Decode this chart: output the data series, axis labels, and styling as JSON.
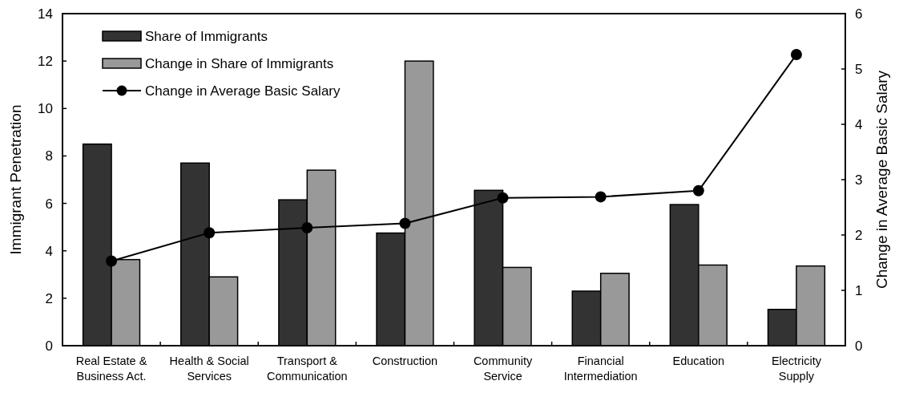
{
  "chart_data": {
    "type": "bar",
    "categories": [
      "Real Estate &\nBusiness Act.",
      "Health & Social\nServices",
      "Transport &\nCommunication",
      "Construction",
      "Community\nService",
      "Financial\nIntermediation",
      "Education",
      "Electricity\nSupply"
    ],
    "series": [
      {
        "name": "Share of Immigrants",
        "color": "#333333",
        "values": [
          8.5,
          7.7,
          6.15,
          4.75,
          6.55,
          2.3,
          5.95,
          1.53
        ]
      },
      {
        "name": "Change in Share of Immigrants",
        "color": "#999999",
        "values": [
          3.63,
          2.9,
          7.4,
          12.0,
          3.3,
          3.05,
          3.4,
          3.36
        ]
      },
      {
        "name": "Change in Average Basic Salary",
        "type": "line",
        "axis": "y2",
        "color": "#000000",
        "marker": "circle",
        "values": [
          1.53,
          2.04,
          2.13,
          2.21,
          2.67,
          2.69,
          2.8,
          5.26
        ]
      }
    ],
    "ylabel": "Immigrant Penetration",
    "y2label": "Change in Average Basic Salary",
    "ylim": [
      0,
      14
    ],
    "yticks": [
      0,
      2,
      4,
      6,
      8,
      10,
      12,
      14
    ],
    "y2lim": [
      0,
      6
    ],
    "y2ticks": [
      0,
      1,
      2,
      3,
      4,
      5,
      6
    ],
    "legend": "top left",
    "grid": false
  }
}
